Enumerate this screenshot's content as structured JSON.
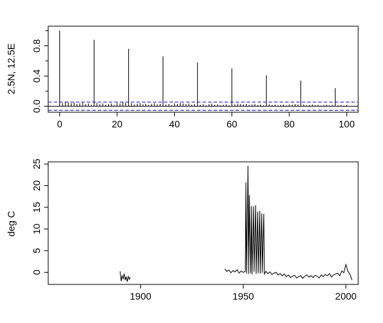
{
  "chart_data": [
    {
      "type": "bar",
      "title": "",
      "xlabel": "",
      "ylabel": "2.5N, 12.5E",
      "xlim": [
        -4,
        104
      ],
      "ylim": [
        -0.08,
        1.06
      ],
      "xticks": [
        0,
        20,
        40,
        60,
        80,
        100
      ],
      "yticks": [
        0.0,
        0.4,
        0.8
      ],
      "ytick_labels": [
        "0.0",
        "0.4",
        "0.8"
      ],
      "confidence_band": [
        -0.055,
        0.055
      ],
      "lags": [
        0,
        12,
        24,
        36,
        48,
        60,
        72,
        84,
        96
      ],
      "acf_peaks": [
        1.0,
        0.88,
        0.76,
        0.66,
        0.58,
        0.5,
        0.41,
        0.34,
        0.24
      ],
      "small_lag_values": [
        0.05,
        0.04,
        0.06,
        0.05,
        0.04,
        0.05,
        0.03,
        0.04,
        0.05,
        0.03,
        0.04,
        0.02,
        0.04,
        0.05,
        0.03,
        0.04,
        0.02,
        0.03,
        0.04,
        0.02
      ]
    },
    {
      "type": "line",
      "title": "",
      "xlabel": "",
      "ylabel": "deg C",
      "xlim": [
        1855,
        2006
      ],
      "ylim": [
        -2.8,
        25.5
      ],
      "xticks": [
        1900,
        1950,
        2000
      ],
      "yticks": [
        0,
        5,
        10,
        15,
        20,
        25
      ],
      "segments": [
        {
          "x": [
            1890,
            1890.5,
            1891,
            1891.5,
            1892,
            1892.5,
            1893,
            1893.5,
            1894,
            1894.5,
            1895
          ],
          "y": [
            0.2,
            -2.0,
            -0.8,
            -1.5,
            -0.3,
            -1.8,
            -1.0,
            -2.2,
            -0.9,
            -1.6,
            -1.1
          ]
        },
        {
          "x": [
            1941,
            1942,
            1943,
            1944,
            1945,
            1946,
            1947,
            1948,
            1949,
            1950,
            1951,
            1951.3,
            1951.6,
            1952,
            1952.3,
            1952.6,
            1953,
            1953.3,
            1953.6,
            1954,
            1954.3,
            1955,
            1955.3,
            1956,
            1956.3,
            1957,
            1957.3,
            1958,
            1958.3,
            1959,
            1959.3,
            1960,
            1960.3,
            1961,
            1962,
            1963,
            1964,
            1965,
            1966,
            1967,
            1968,
            1969,
            1970,
            1971,
            1972,
            1973,
            1974,
            1975,
            1976,
            1977,
            1978,
            1979,
            1980,
            1981,
            1982,
            1983,
            1984,
            1985,
            1986,
            1987,
            1988,
            1989,
            1990,
            1991,
            1992,
            1993,
            1994,
            1995,
            1996,
            1997,
            1998,
            1999,
            2000,
            2001,
            2002,
            2003
          ],
          "y": [
            0.8,
            0.2,
            0.5,
            -0.1,
            0.4,
            0.1,
            0.6,
            -0.2,
            0.3,
            0.0,
            0.2,
            20.8,
            -0.3,
            12.0,
            24.6,
            -0.4,
            17.8,
            8.5,
            -0.2,
            15.3,
            -0.5,
            15.2,
            0.1,
            15.5,
            -0.4,
            14.0,
            -0.2,
            14.2,
            -0.3,
            13.6,
            -0.1,
            13.5,
            -0.4,
            0.2,
            -0.3,
            0.1,
            -0.5,
            -0.2,
            0.0,
            -0.6,
            -0.3,
            -0.8,
            -0.4,
            -1.0,
            -0.6,
            -1.2,
            -0.9,
            -0.7,
            -1.3,
            -1.0,
            -0.8,
            -1.4,
            -0.9,
            -0.6,
            -1.1,
            -0.8,
            -1.2,
            -0.7,
            -0.9,
            -1.3,
            -0.6,
            -1.0,
            -0.5,
            -0.8,
            -0.3,
            -1.1,
            -0.6,
            -0.4,
            -0.2,
            -0.8,
            0.3,
            -0.1,
            1.8,
            0.2,
            -0.5,
            -1.8
          ]
        }
      ]
    }
  ]
}
